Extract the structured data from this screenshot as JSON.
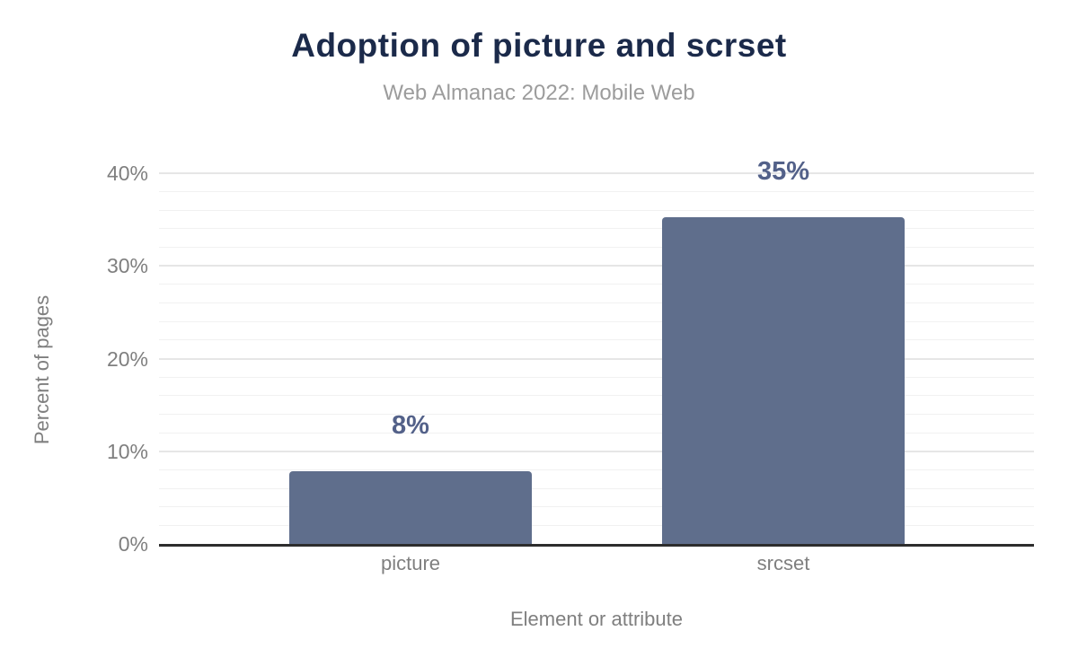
{
  "chart": {
    "colors": {
      "title_text": "#1b2a4a",
      "subtitle_text": "#9c9c9c",
      "axis_text": "#7f7f7f",
      "bar_fill": "#5f6e8c",
      "data_label_text": "#536189",
      "axis_line": "#2d2d2d",
      "grid_major": "#e6e6e6",
      "grid_minor": "#f1f1f1",
      "background": "#ffffff"
    }
  },
  "chart_data": {
    "type": "bar",
    "title": "Adoption of picture and scrset",
    "subtitle": "Web Almanac 2022: Mobile Web",
    "categories": [
      "picture",
      "srcset"
    ],
    "values": [
      7.8,
      35.3
    ],
    "data_labels": [
      "8%",
      "35%"
    ],
    "xlabel": "Element or attribute",
    "ylabel": "Percent of pages",
    "ylim": [
      0,
      40
    ],
    "yticks": [
      0,
      10,
      20,
      30,
      40
    ],
    "ytick_labels": [
      "0%",
      "10%",
      "20%",
      "30%",
      "40%"
    ],
    "minor_grid_step": 2,
    "grid": true,
    "legend": false,
    "bar_color": "#5f6e8c"
  }
}
